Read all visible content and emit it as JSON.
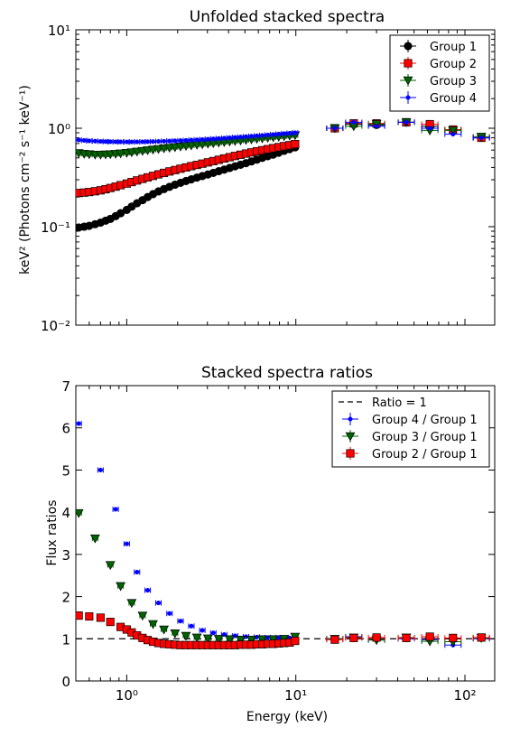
{
  "chart_data": [
    {
      "type": "scatter",
      "title": "Unfolded stacked spectra",
      "xlabel": "",
      "ylabel": "keV² (Photons cm⁻² s⁻¹ keV⁻¹)",
      "xscale": "log",
      "yscale": "log",
      "xlim": [
        0.5,
        150
      ],
      "ylim": [
        0.01,
        10
      ],
      "yticks": [
        "10⁻²",
        "10⁻¹",
        "10⁰",
        "10¹"
      ],
      "legend_loc": "upper right",
      "series": [
        {
          "name": "Group 1",
          "color": "#000000",
          "marker": "circle",
          "x": [
            0.52,
            0.56,
            0.6,
            0.65,
            0.7,
            0.75,
            0.8,
            0.86,
            0.92,
            1.0,
            1.07,
            1.15,
            1.24,
            1.33,
            1.43,
            1.54,
            1.66,
            1.79,
            1.93,
            2.08,
            2.24,
            2.41,
            2.6,
            2.8,
            3.02,
            3.25,
            3.5,
            3.77,
            4.06,
            4.37,
            4.71,
            5.07,
            5.46,
            5.88,
            6.33,
            6.82,
            7.35,
            7.92,
            8.53,
            9.19,
            9.9,
            17,
            22,
            30,
            45,
            62,
            85,
            125
          ],
          "y": [
            0.098,
            0.1,
            0.102,
            0.106,
            0.11,
            0.115,
            0.12,
            0.128,
            0.137,
            0.148,
            0.16,
            0.173,
            0.186,
            0.2,
            0.214,
            0.228,
            0.241,
            0.254,
            0.267,
            0.279,
            0.291,
            0.303,
            0.315,
            0.327,
            0.339,
            0.352,
            0.366,
            0.38,
            0.395,
            0.41,
            0.426,
            0.442,
            0.46,
            0.48,
            0.5,
            0.52,
            0.54,
            0.565,
            0.59,
            0.615,
            0.64,
            1.0,
            1.1,
            1.08,
            1.15,
            1.05,
            0.97,
            0.8
          ]
        },
        {
          "name": "Group 2",
          "color": "#ff0000",
          "marker": "square",
          "x": [
            0.52,
            0.56,
            0.6,
            0.65,
            0.7,
            0.75,
            0.8,
            0.86,
            0.92,
            1.0,
            1.07,
            1.15,
            1.24,
            1.33,
            1.43,
            1.54,
            1.66,
            1.79,
            1.93,
            2.08,
            2.24,
            2.41,
            2.6,
            2.8,
            3.02,
            3.25,
            3.5,
            3.77,
            4.06,
            4.37,
            4.71,
            5.07,
            5.46,
            5.88,
            6.33,
            6.82,
            7.35,
            7.92,
            8.53,
            9.19,
            9.9,
            17,
            22,
            30,
            45,
            62,
            85,
            125
          ],
          "y": [
            0.22,
            0.222,
            0.225,
            0.229,
            0.234,
            0.24,
            0.247,
            0.255,
            0.264,
            0.274,
            0.284,
            0.295,
            0.306,
            0.317,
            0.328,
            0.34,
            0.352,
            0.364,
            0.376,
            0.388,
            0.4,
            0.412,
            0.424,
            0.437,
            0.45,
            0.464,
            0.478,
            0.493,
            0.508,
            0.523,
            0.538,
            0.553,
            0.568,
            0.583,
            0.598,
            0.613,
            0.628,
            0.643,
            0.658,
            0.673,
            0.69,
            1.0,
            1.12,
            1.12,
            1.15,
            1.1,
            0.97,
            0.8
          ]
        },
        {
          "name": "Group 3",
          "color": "#006400",
          "marker": "triangle-down",
          "x": [
            0.52,
            0.56,
            0.6,
            0.65,
            0.7,
            0.75,
            0.8,
            0.86,
            0.92,
            1.0,
            1.07,
            1.15,
            1.24,
            1.33,
            1.43,
            1.54,
            1.66,
            1.79,
            1.93,
            2.08,
            2.24,
            2.41,
            2.6,
            2.8,
            3.02,
            3.25,
            3.5,
            3.77,
            4.06,
            4.37,
            4.71,
            5.07,
            5.46,
            5.88,
            6.33,
            6.82,
            7.35,
            7.92,
            8.53,
            9.19,
            9.9,
            17,
            22,
            30,
            45,
            62,
            85,
            125
          ],
          "y": [
            0.56,
            0.55,
            0.545,
            0.54,
            0.54,
            0.542,
            0.545,
            0.55,
            0.556,
            0.563,
            0.571,
            0.58,
            0.589,
            0.598,
            0.607,
            0.616,
            0.625,
            0.634,
            0.643,
            0.652,
            0.661,
            0.67,
            0.679,
            0.688,
            0.697,
            0.706,
            0.715,
            0.724,
            0.733,
            0.742,
            0.751,
            0.76,
            0.77,
            0.78,
            0.79,
            0.8,
            0.81,
            0.82,
            0.83,
            0.84,
            0.85,
            1.0,
            1.05,
            1.1,
            1.15,
            0.95,
            0.95,
            0.82
          ]
        },
        {
          "name": "Group 4",
          "color": "#0000ff",
          "marker": "dot",
          "x": [
            0.52,
            0.56,
            0.6,
            0.65,
            0.7,
            0.75,
            0.8,
            0.86,
            0.92,
            1.0,
            1.07,
            1.15,
            1.24,
            1.33,
            1.43,
            1.54,
            1.66,
            1.79,
            1.93,
            2.08,
            2.24,
            2.41,
            2.6,
            2.8,
            3.02,
            3.25,
            3.5,
            3.77,
            4.06,
            4.37,
            4.71,
            5.07,
            5.46,
            5.88,
            6.33,
            6.82,
            7.35,
            7.92,
            8.53,
            9.19,
            9.9,
            17,
            22,
            30,
            45,
            62,
            85,
            125
          ],
          "y": [
            0.76,
            0.752,
            0.745,
            0.74,
            0.735,
            0.732,
            0.73,
            0.728,
            0.727,
            0.726,
            0.726,
            0.727,
            0.728,
            0.73,
            0.732,
            0.735,
            0.738,
            0.741,
            0.745,
            0.749,
            0.753,
            0.758,
            0.763,
            0.768,
            0.774,
            0.78,
            0.786,
            0.793,
            0.8,
            0.807,
            0.814,
            0.822,
            0.83,
            0.838,
            0.846,
            0.855,
            0.864,
            0.873,
            0.882,
            0.891,
            0.9,
            1.0,
            1.15,
            1.05,
            1.15,
            1.0,
            0.87,
            0.8
          ]
        }
      ]
    },
    {
      "type": "scatter",
      "title": "Stacked spectra ratios",
      "xlabel": "Energy (keV)",
      "ylabel": "Flux ratios",
      "xscale": "log",
      "yscale": "linear",
      "xlim": [
        0.5,
        150
      ],
      "ylim": [
        0,
        7
      ],
      "yticks": [
        "0",
        "1",
        "2",
        "3",
        "4",
        "5",
        "6",
        "7"
      ],
      "xticks": [
        "10⁰",
        "10¹",
        "10²"
      ],
      "legend_loc": "upper right",
      "reference_line": {
        "name": "Ratio = 1",
        "y": 1,
        "style": "dashed",
        "color": "#000000"
      },
      "series": [
        {
          "name": "Group 4 / Group 1",
          "color": "#0000ff",
          "marker": "dot",
          "x": [
            0.52,
            0.7,
            0.86,
            1.0,
            1.15,
            1.33,
            1.54,
            1.79,
            2.08,
            2.41,
            2.8,
            3.25,
            3.77,
            4.37,
            5.07,
            5.88,
            6.82,
            7.92,
            9.19,
            9.9,
            17,
            22,
            30,
            45,
            62,
            85,
            125
          ],
          "y": [
            6.1,
            5.0,
            4.07,
            3.25,
            2.58,
            2.15,
            1.85,
            1.6,
            1.42,
            1.3,
            1.2,
            1.14,
            1.1,
            1.07,
            1.05,
            1.04,
            1.03,
            1.03,
            1.02,
            1.02,
            1.0,
            1.05,
            0.97,
            1.0,
            0.98,
            0.85,
            1.0
          ]
        },
        {
          "name": "Group 3 / Group 1",
          "color": "#006400",
          "marker": "triangle-down",
          "x": [
            0.52,
            0.65,
            0.8,
            0.92,
            1.07,
            1.24,
            1.43,
            1.66,
            1.93,
            2.24,
            2.6,
            3.02,
            3.5,
            4.06,
            4.71,
            5.46,
            6.33,
            7.35,
            8.53,
            9.9,
            17,
            22,
            30,
            45,
            62,
            85,
            125
          ],
          "y": [
            3.98,
            3.38,
            2.75,
            2.25,
            1.85,
            1.55,
            1.35,
            1.22,
            1.13,
            1.07,
            1.03,
            1.01,
            1.0,
            0.99,
            0.98,
            0.98,
            0.99,
            0.99,
            1.0,
            1.05,
            1.0,
            1.03,
            0.97,
            1.03,
            0.94,
            0.93,
            1.02
          ]
        },
        {
          "name": "Group 2 / Group 1",
          "color": "#ff0000",
          "marker": "square",
          "x": [
            0.52,
            0.6,
            0.7,
            0.8,
            0.92,
            1.0,
            1.07,
            1.15,
            1.24,
            1.33,
            1.43,
            1.54,
            1.66,
            1.79,
            1.93,
            2.08,
            2.24,
            2.41,
            2.6,
            2.8,
            3.02,
            3.25,
            3.5,
            3.77,
            4.06,
            4.37,
            4.71,
            5.07,
            5.46,
            5.88,
            6.33,
            6.82,
            7.35,
            7.92,
            8.53,
            9.19,
            9.9,
            17,
            22,
            30,
            45,
            62,
            85,
            125
          ],
          "y": [
            1.55,
            1.53,
            1.5,
            1.4,
            1.28,
            1.22,
            1.15,
            1.08,
            1.02,
            0.97,
            0.93,
            0.9,
            0.88,
            0.87,
            0.86,
            0.85,
            0.85,
            0.85,
            0.85,
            0.85,
            0.85,
            0.85,
            0.85,
            0.85,
            0.85,
            0.85,
            0.86,
            0.86,
            0.86,
            0.87,
            0.87,
            0.88,
            0.88,
            0.89,
            0.9,
            0.91,
            0.95,
            0.98,
            1.02,
            1.03,
            1.02,
            1.05,
            1.02,
            1.03
          ]
        }
      ]
    }
  ]
}
